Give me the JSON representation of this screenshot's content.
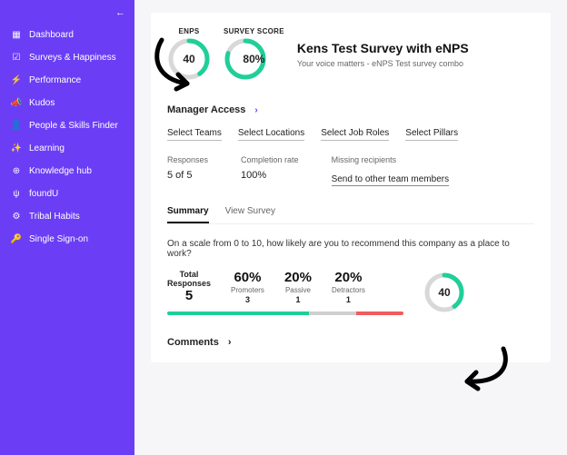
{
  "colors": {
    "sidebar_bg": "#6b3ef5",
    "accent_green": "#1fcf9a",
    "ring_track": "#d8d8d8",
    "passive_grey": "#cfcfcf",
    "detractor_red": "#f25b5b",
    "text_muted": "#666666",
    "text": "#222222"
  },
  "sidebar": {
    "collapse_glyph": "←",
    "items": [
      {
        "icon": "grid-icon",
        "glyph": "▦",
        "label": "Dashboard"
      },
      {
        "icon": "survey-icon",
        "glyph": "☑",
        "label": "Surveys & Happiness"
      },
      {
        "icon": "performance-icon",
        "glyph": "⚡",
        "label": "Performance"
      },
      {
        "icon": "kudos-icon",
        "glyph": "📣",
        "label": "Kudos"
      },
      {
        "icon": "people-icon",
        "glyph": "👤",
        "label": "People & Skills Finder"
      },
      {
        "icon": "learning-icon",
        "glyph": "✨",
        "label": "Learning"
      },
      {
        "icon": "knowledge-icon",
        "glyph": "⊕",
        "label": "Knowledge hub"
      },
      {
        "icon": "foundu-icon",
        "glyph": "ψ",
        "label": "foundU"
      },
      {
        "icon": "tribal-icon",
        "glyph": "⚙",
        "label": "Tribal Habits"
      },
      {
        "icon": "sso-icon",
        "glyph": "🔑",
        "label": "Single Sign-on"
      }
    ]
  },
  "hero": {
    "enps": {
      "label": "ENPS",
      "value": "40",
      "pct": 0.4
    },
    "survey_score": {
      "label": "SURVEY SCORE",
      "value": "80%",
      "pct": 0.8
    },
    "title": "Kens Test Survey with eNPS",
    "subtitle": "Your voice matters - eNPS Test survey combo"
  },
  "manager_access_label": "Manager Access",
  "filters": [
    "Select Teams",
    "Select Locations",
    "Select Job Roles",
    "Select Pillars"
  ],
  "stats": {
    "responses": {
      "label": "Responses",
      "value": "5 of 5"
    },
    "completion": {
      "label": "Completion rate",
      "value": "100%"
    },
    "missing": {
      "label": "Missing recipients",
      "link": "Send to other team members"
    }
  },
  "tabs": {
    "active": "Summary",
    "other": "View Survey"
  },
  "question": "On a scale from 0 to 10, how likely are you to recommend this company as a place to work?",
  "breakdown": {
    "total": {
      "label_top": "Total",
      "label_bottom": "Responses",
      "value": "5"
    },
    "promoters": {
      "pct": "60%",
      "label": "Promoters",
      "count": "3",
      "share": 0.6
    },
    "passive": {
      "pct": "20%",
      "label": "Passive",
      "count": "1",
      "share": 0.2
    },
    "detractors": {
      "pct": "20%",
      "label": "Detractors",
      "count": "1",
      "share": 0.2
    },
    "ring": {
      "value": "40",
      "pct": 0.4
    }
  },
  "comments_label": "Comments"
}
